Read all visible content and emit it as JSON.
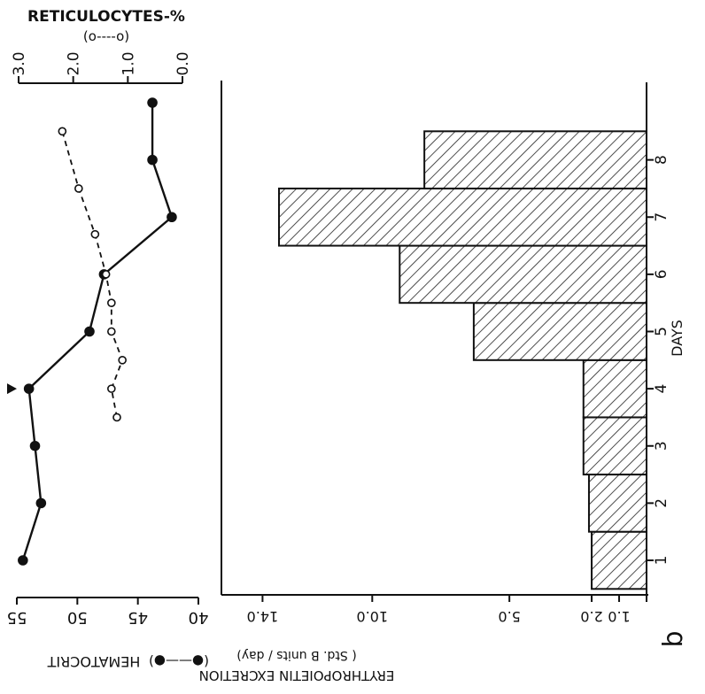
{
  "chart_data": [
    {
      "type": "line",
      "x": [
        1,
        2,
        3,
        4,
        5,
        6,
        7,
        8,
        9
      ],
      "x_axis_shared_with": "erythropoietin-bar-chart",
      "series": [
        {
          "name": "HEMATOCRIT",
          "legend": "(●——●)",
          "marker": "filled-circle",
          "line_style": "solid",
          "axis": "left",
          "x": [
            1,
            2,
            3,
            4,
            5,
            6,
            7,
            8,
            9
          ],
          "values": [
            54.5,
            53,
            53.5,
            54,
            49,
            47.8,
            42.2,
            43.8,
            43.8
          ]
        },
        {
          "name": "RETICULOCYTES-%",
          "legend": "(o----o)",
          "marker": "open-circle",
          "line_style": "dashed",
          "axis": "top",
          "x": [
            3.5,
            4,
            4.5,
            5,
            5.5,
            6,
            6.7,
            7.5,
            8.5
          ],
          "values": [
            1.2,
            1.3,
            1.1,
            1.3,
            1.3,
            1.4,
            1.6,
            1.9,
            2.2
          ]
        }
      ],
      "left_axis": {
        "label": "HEMATOCRIT",
        "legend": "(●——●)",
        "ticks": [
          "55",
          "50",
          "45",
          "40"
        ],
        "range": [
          40,
          55
        ]
      },
      "top_axis": {
        "label": "RETICULOCYTES-%",
        "legend": "(o----o)",
        "ticks": [
          "3.0",
          "2.0",
          "1.0",
          "0.0"
        ],
        "range": [
          0,
          3
        ]
      },
      "marker_label": "▼",
      "marker_day": 4
    },
    {
      "type": "bar",
      "categories": [
        "1",
        "2",
        "3",
        "4",
        "5",
        "6",
        "7",
        "8"
      ],
      "values": [
        2.0,
        2.1,
        2.3,
        2.3,
        6.3,
        9.0,
        13.4,
        8.1
      ],
      "xlabel": "DAYS",
      "ylabel": "ERYTHROPOIETIN EXCRETION",
      "ylabel_units": "( Std. B units / day)",
      "y_ticks": [
        "14.0",
        "10.0",
        "5.0",
        "2.0",
        "1.0"
      ],
      "ylim": [
        0,
        14
      ],
      "fill_pattern": "diagonal-hatch"
    }
  ],
  "panel_label": "b"
}
